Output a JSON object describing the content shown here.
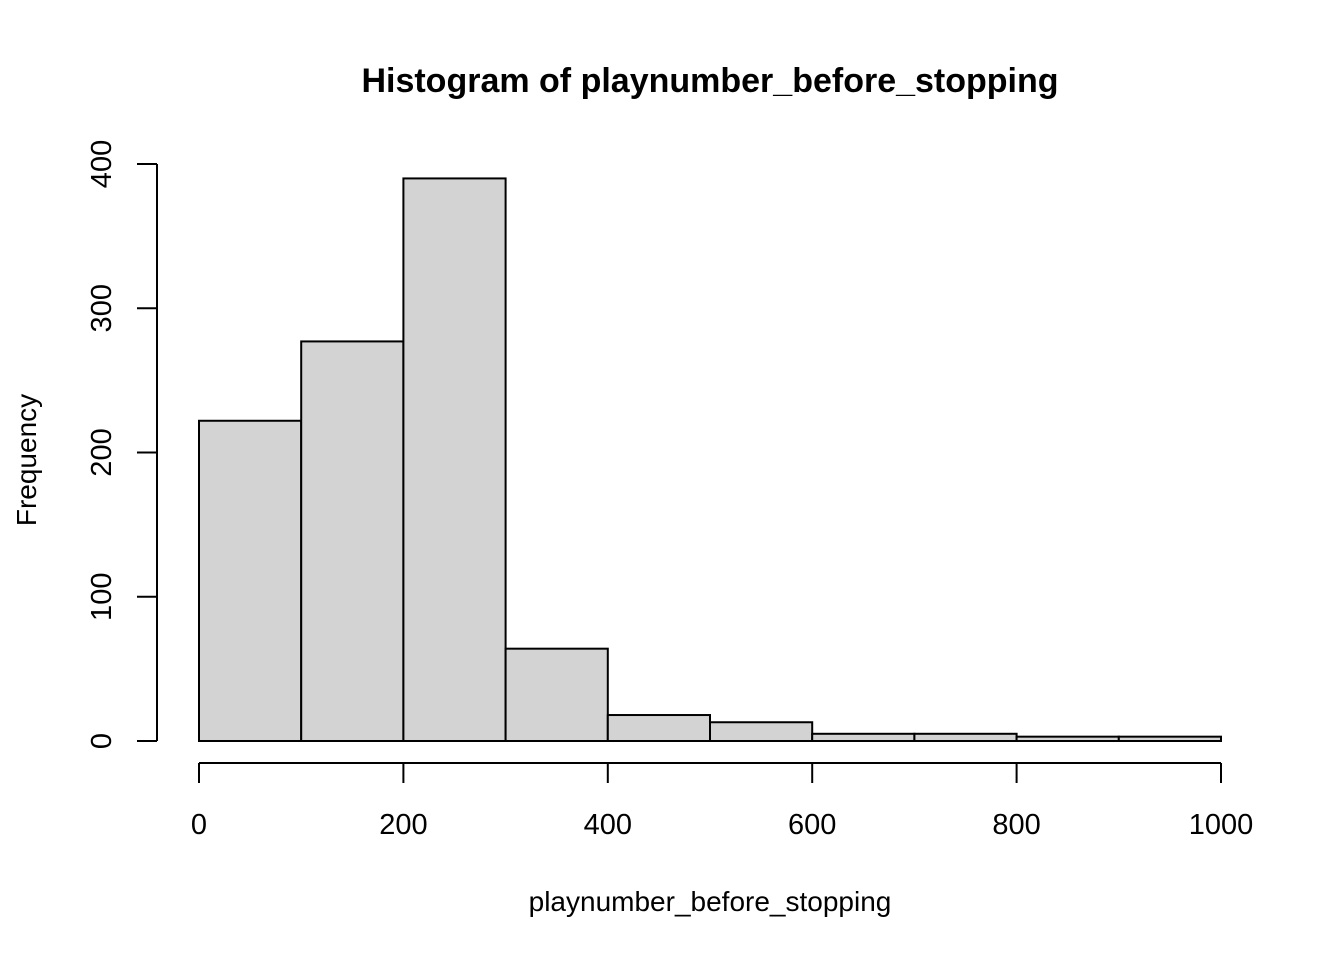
{
  "chart_data": {
    "type": "bar",
    "title": "Histogram of playnumber_before_stopping",
    "xlabel": "playnumber_before_stopping",
    "ylabel": "Frequency",
    "bins": [
      {
        "start": 0,
        "end": 100,
        "value": 222
      },
      {
        "start": 100,
        "end": 200,
        "value": 277
      },
      {
        "start": 200,
        "end": 300,
        "value": 390
      },
      {
        "start": 300,
        "end": 400,
        "value": 64
      },
      {
        "start": 400,
        "end": 500,
        "value": 18
      },
      {
        "start": 500,
        "end": 600,
        "value": 13
      },
      {
        "start": 600,
        "end": 700,
        "value": 5
      },
      {
        "start": 700,
        "end": 800,
        "value": 5
      },
      {
        "start": 800,
        "end": 900,
        "value": 3
      },
      {
        "start": 900,
        "end": 1000,
        "value": 3
      }
    ],
    "xlim": [
      0,
      1000
    ],
    "ylim": [
      0,
      400
    ],
    "xticks": [
      0,
      200,
      400,
      600,
      800,
      1000
    ],
    "yticks": [
      0,
      100,
      200,
      300,
      400
    ],
    "bar_color": "#d3d3d3",
    "edge_color": "#000000",
    "grid": false,
    "legend": "none"
  }
}
